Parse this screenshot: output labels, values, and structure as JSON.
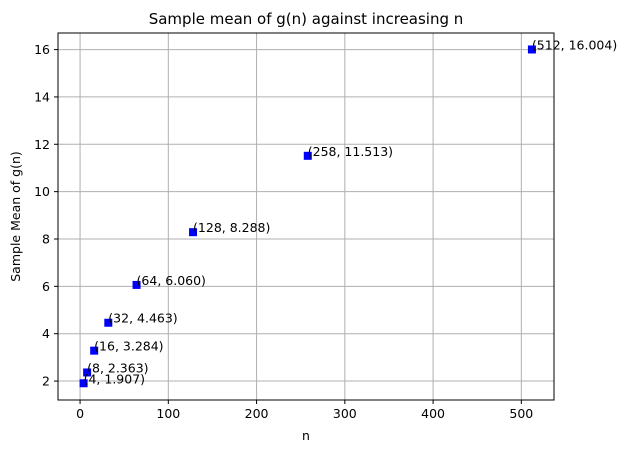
{
  "chart_data": {
    "type": "scatter",
    "title": "Sample mean of g(n) against increasing n",
    "xlabel": "n",
    "ylabel": "Sample Mean of g(n)",
    "xlim": [
      -25,
      537
    ],
    "ylim": [
      1.2,
      16.7
    ],
    "xticks": [
      0,
      100,
      200,
      300,
      400,
      500
    ],
    "yticks": [
      2,
      4,
      6,
      8,
      10,
      12,
      14,
      16
    ],
    "grid": true,
    "marker": "square",
    "marker_color": "#0000ff",
    "points": [
      {
        "x": 4,
        "y": 1.907,
        "label": "(4, 1.907)"
      },
      {
        "x": 8,
        "y": 2.363,
        "label": "(8, 2.363)"
      },
      {
        "x": 16,
        "y": 3.284,
        "label": "(16, 3.284)"
      },
      {
        "x": 32,
        "y": 4.463,
        "label": "(32, 4.463)"
      },
      {
        "x": 64,
        "y": 6.06,
        "label": "(64, 6.060)"
      },
      {
        "x": 128,
        "y": 8.288,
        "label": "(128, 8.288)"
      },
      {
        "x": 258,
        "y": 11.513,
        "label": "(258, 11.513)"
      },
      {
        "x": 512,
        "y": 16.004,
        "label": "(512, 16.004)"
      }
    ]
  }
}
